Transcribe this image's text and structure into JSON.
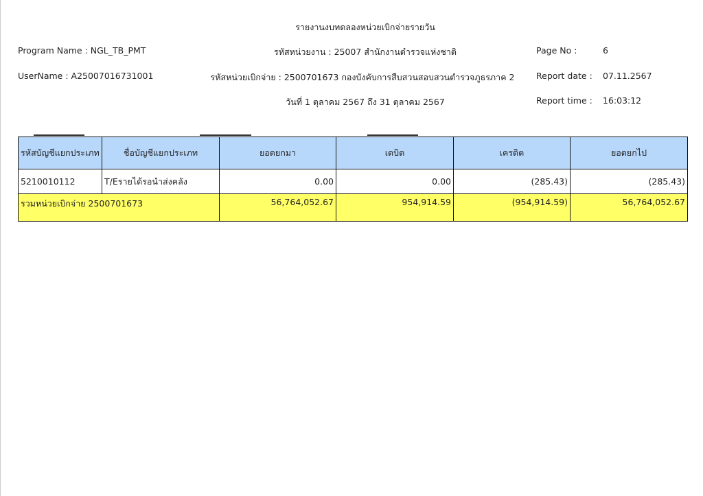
{
  "title": "รายงานงบทดลองหน่วยเบิกจ่ายรายวัน",
  "program_name": "Program Name : NGL_TB_PMT",
  "user_name": "UserName : A25007016731001",
  "agency": "รหัสหน่วยงาน : 25007 สำนักงานตำรวจแห่งชาติ",
  "disbursing_unit": "รหัสหน่วยเบิกจ่าย : 2500701673 กองบังคับการสืบสวนสอบสวนตำรวจภูธรภาค 2",
  "date_range": "วันที่ 1 ตุลาคม 2567 ถึง 31 ตุลาคม 2567",
  "page_no_label": "Page No :",
  "page_no": "6",
  "report_date_label": "Report date :",
  "report_date": "07.11.2567",
  "report_time_label": "Report time :",
  "report_time": "16:03:12",
  "table": {
    "headers": [
      "รหัสบัญชีแยกประเภท",
      "ชื่อบัญชีแยกประเภท",
      "ยอดยกมา",
      "เดบิต",
      "เครดิต",
      "ยอดยกไป"
    ],
    "rows": [
      [
        "5210010112",
        "T/Eรายได้รอนำส่งคลัง",
        "0.00",
        "0.00",
        "(285.43)",
        "(285.43)"
      ]
    ],
    "total": {
      "label": "รวมหน่วยเบิกจ่าย 2500701673",
      "values": [
        "56,764,052.67",
        "954,914.59",
        "(954,914.59)",
        "56,764,052.67"
      ]
    }
  },
  "colors": {
    "header_bg": "#b8d8fb",
    "total_bg": "#ffff66"
  }
}
